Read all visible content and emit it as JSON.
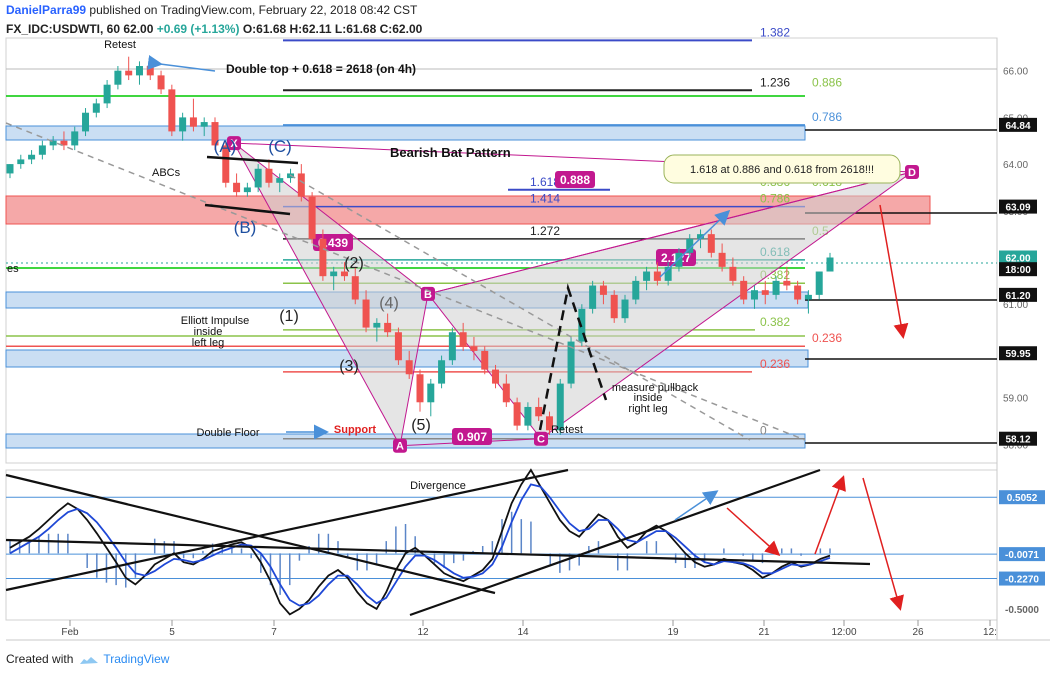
{
  "header": {
    "author": "DanielParra99",
    "published": "published on TradingView.com, February 22, 2018 08:42 CST",
    "symbol": "FX_IDC:USDWTI, 60",
    "last": "62.00",
    "change": "+0.69 (+1.13%)",
    "o": "O:61.68",
    "h": "H:62.11",
    "l": "L:61.68",
    "c": "C:62.00"
  },
  "footer": {
    "created_with": "Created with",
    "brand": "TradingView"
  },
  "colors": {
    "up": "#26a69a",
    "down": "#ef5350",
    "zone_blue": "#4a90d9",
    "zone_red": "#ef5350",
    "pattern": "#c2188f",
    "fib_green": "#00c800",
    "fib_blue": "#3b4bc8"
  },
  "chart_data": {
    "type": "candlestick",
    "x_ticks": [
      "Feb",
      "5",
      "7",
      "12",
      "14",
      "19",
      "21",
      "12:00",
      "26",
      "12:"
    ],
    "y_ticks": [
      "66.00",
      "65.00",
      "64.00",
      "63.00",
      "62.00",
      "61.00",
      "60.00",
      "59.00",
      "58.00"
    ],
    "ylim": [
      57.6,
      66.7
    ],
    "price_labels": [
      {
        "value": 64.84,
        "label": "64.84",
        "style": "dark"
      },
      {
        "value": 63.09,
        "label": "63.09",
        "style": "dark"
      },
      {
        "value": 62.0,
        "label": "62.00",
        "style": "green"
      },
      {
        "value": 61.75,
        "label": "18:00",
        "style": "dark"
      },
      {
        "value": 61.2,
        "label": "61.20",
        "style": "dark"
      },
      {
        "value": 59.95,
        "label": "59.95",
        "style": "dark"
      },
      {
        "value": 58.12,
        "label": "58.12",
        "style": "dark"
      }
    ],
    "candles": [
      [
        63.8,
        64.0,
        63.7,
        64.0
      ],
      [
        64.0,
        64.2,
        63.9,
        64.1
      ],
      [
        64.1,
        64.3,
        64.0,
        64.2
      ],
      [
        64.2,
        64.5,
        64.1,
        64.4
      ],
      [
        64.4,
        64.6,
        64.3,
        64.5
      ],
      [
        64.5,
        64.7,
        64.3,
        64.4
      ],
      [
        64.4,
        64.8,
        64.3,
        64.7
      ],
      [
        64.7,
        65.2,
        64.6,
        65.1
      ],
      [
        65.1,
        65.4,
        65.0,
        65.3
      ],
      [
        65.3,
        65.8,
        65.2,
        65.7
      ],
      [
        65.7,
        66.1,
        65.6,
        66.0
      ],
      [
        66.0,
        66.3,
        65.8,
        65.9
      ],
      [
        65.9,
        66.2,
        65.7,
        66.1
      ],
      [
        66.1,
        66.2,
        65.8,
        65.9
      ],
      [
        65.9,
        66.0,
        65.5,
        65.6
      ],
      [
        65.6,
        65.7,
        64.6,
        64.7
      ],
      [
        64.7,
        65.1,
        64.5,
        65.0
      ],
      [
        65.0,
        65.4,
        64.7,
        64.8
      ],
      [
        64.8,
        65.0,
        64.6,
        64.9
      ],
      [
        64.9,
        65.0,
        64.3,
        64.4
      ],
      [
        64.4,
        64.5,
        63.5,
        63.6
      ],
      [
        63.6,
        63.8,
        63.3,
        63.4
      ],
      [
        63.4,
        63.6,
        63.3,
        63.5
      ],
      [
        63.5,
        64.0,
        63.4,
        63.9
      ],
      [
        63.9,
        64.1,
        63.5,
        63.6
      ],
      [
        63.6,
        63.8,
        63.4,
        63.7
      ],
      [
        63.7,
        63.9,
        63.6,
        63.8
      ],
      [
        63.8,
        64.0,
        63.2,
        63.3
      ],
      [
        63.3,
        63.4,
        62.3,
        62.4
      ],
      [
        62.4,
        62.6,
        61.5,
        61.6
      ],
      [
        61.6,
        61.8,
        61.3,
        61.7
      ],
      [
        61.7,
        61.9,
        61.5,
        61.6
      ],
      [
        61.6,
        61.8,
        61.0,
        61.1
      ],
      [
        61.1,
        61.3,
        60.4,
        60.5
      ],
      [
        60.5,
        60.7,
        60.2,
        60.6
      ],
      [
        60.6,
        60.8,
        60.3,
        60.4
      ],
      [
        60.4,
        60.5,
        59.7,
        59.8
      ],
      [
        59.8,
        60.0,
        59.4,
        59.5
      ],
      [
        59.5,
        59.6,
        58.7,
        58.9
      ],
      [
        58.9,
        59.4,
        58.6,
        59.3
      ],
      [
        59.3,
        59.9,
        59.2,
        59.8
      ],
      [
        59.8,
        60.5,
        59.7,
        60.4
      ],
      [
        60.4,
        60.6,
        60.0,
        60.1
      ],
      [
        60.1,
        60.3,
        59.8,
        60.0
      ],
      [
        60.0,
        60.1,
        59.5,
        59.6
      ],
      [
        59.6,
        59.7,
        59.2,
        59.3
      ],
      [
        59.3,
        59.5,
        58.8,
        58.9
      ],
      [
        58.9,
        59.0,
        58.3,
        58.4
      ],
      [
        58.4,
        58.9,
        58.3,
        58.8
      ],
      [
        58.8,
        59.0,
        58.5,
        58.6
      ],
      [
        58.6,
        58.7,
        58.2,
        58.3
      ],
      [
        58.3,
        59.4,
        58.2,
        59.3
      ],
      [
        59.3,
        60.3,
        59.2,
        60.2
      ],
      [
        60.2,
        61.0,
        60.1,
        60.9
      ],
      [
        60.9,
        61.5,
        60.8,
        61.4
      ],
      [
        61.4,
        61.5,
        61.0,
        61.2
      ],
      [
        61.2,
        61.3,
        60.6,
        60.7
      ],
      [
        60.7,
        61.2,
        60.6,
        61.1
      ],
      [
        61.1,
        61.6,
        61.0,
        61.5
      ],
      [
        61.5,
        61.8,
        61.3,
        61.7
      ],
      [
        61.7,
        61.9,
        61.4,
        61.5
      ],
      [
        61.5,
        61.9,
        61.4,
        61.8
      ],
      [
        61.8,
        62.2,
        61.7,
        62.1
      ],
      [
        62.1,
        62.5,
        62.0,
        62.4
      ],
      [
        62.4,
        62.6,
        62.2,
        62.5
      ],
      [
        62.5,
        62.6,
        62.0,
        62.1
      ],
      [
        62.1,
        62.3,
        61.7,
        61.8
      ],
      [
        61.8,
        62.0,
        61.4,
        61.5
      ],
      [
        61.5,
        61.6,
        61.0,
        61.1
      ],
      [
        61.1,
        61.4,
        60.9,
        61.3
      ],
      [
        61.3,
        61.5,
        61.0,
        61.2
      ],
      [
        61.2,
        61.6,
        61.1,
        61.5
      ],
      [
        61.5,
        61.8,
        61.3,
        61.4
      ],
      [
        61.4,
        61.5,
        61.0,
        61.1
      ],
      [
        61.1,
        61.3,
        60.8,
        61.2
      ],
      [
        61.2,
        61.7,
        61.1,
        61.7
      ],
      [
        61.7,
        62.1,
        61.7,
        62.0
      ]
    ],
    "horizontal_lines": [
      {
        "value": 66.65,
        "label": "1.382",
        "color": "#3b4bc8"
      },
      {
        "value": 65.58,
        "label": "1.236",
        "color": "#222222",
        "label2": "0.886"
      },
      {
        "value": 64.84,
        "label": "0.786",
        "color": "#4a90d9"
      },
      {
        "value": 63.45,
        "label": "1.618",
        "color": "#3b4bc8",
        "label2": "0.886",
        "label3": "0.618"
      },
      {
        "value": 63.09,
        "label": "1.414",
        "color": "#3b4bc8",
        "label2": "0.786"
      },
      {
        "value": 62.4,
        "label": "1.272",
        "color": "#222222",
        "label2": "0.5"
      },
      {
        "value": 61.95,
        "label2": "0.618",
        "color": "#26a69a"
      },
      {
        "value": 61.45,
        "label2": "0.382",
        "color": "#8bc34a"
      },
      {
        "value": 60.45,
        "label2": "0.382",
        "color": "#8bc34a"
      },
      {
        "value": 60.1,
        "label2": "0.236",
        "color": "#ef5350"
      },
      {
        "value": 59.55,
        "label2": "0.236",
        "color": "#ef5350"
      },
      {
        "value": 58.12,
        "label2": "0",
        "color": "#888888"
      }
    ],
    "pattern_points": [
      {
        "label": "X",
        "value": 64.45
      },
      {
        "label": "A",
        "value": 57.97
      },
      {
        "label": "B",
        "value": 61.22
      },
      {
        "label": "C",
        "value": 58.12
      },
      {
        "label": "D",
        "value": 63.83
      }
    ],
    "pattern_ratios": [
      "0.439",
      "0.907",
      "2.127",
      "0.888"
    ],
    "annotations": [
      "Retest",
      "Double top + 0.618 = 2618 (on 4h)",
      "Bearish Bat Pattern",
      "1.618 at 0.886 and 0.618 from 2618!!!",
      "ABCs",
      "(A)",
      "(B)",
      "(C)",
      "(1)",
      "(2)",
      "(3)",
      "(4)",
      "(5)",
      "Elliott Impulse",
      "inside",
      "left leg",
      "measure pullback",
      "inside",
      "right leg",
      "Double Floor",
      "Support",
      "Retest",
      "Divergence",
      "es"
    ],
    "oscillator": {
      "y_ticks": [
        "0.5052",
        "-0.0071",
        "-0.2270",
        "-0.5000"
      ],
      "ylim": [
        -0.6,
        0.75
      ],
      "macd": [
        0.05,
        0.1,
        0.15,
        0.22,
        0.3,
        0.38,
        0.45,
        0.4,
        0.3,
        0.18,
        0.05,
        -0.08,
        -0.22,
        -0.28,
        -0.2,
        -0.1,
        -0.05,
        0.0,
        -0.08,
        -0.1,
        -0.05,
        0.02,
        0.05,
        0.08,
        0.1,
        0.05,
        -0.08,
        -0.25,
        -0.45,
        -0.55,
        -0.5,
        -0.42,
        -0.3,
        -0.2,
        -0.15,
        -0.22,
        -0.35,
        -0.45,
        -0.5,
        -0.35,
        -0.15,
        0.0,
        0.05,
        -0.02,
        -0.1,
        -0.18,
        -0.22,
        -0.25,
        -0.2,
        -0.15,
        -0.05,
        0.2,
        0.45,
        0.62,
        0.75,
        0.6,
        0.45,
        0.3,
        0.2,
        0.15,
        0.25,
        0.35,
        0.3,
        0.15,
        0.05,
        0.1,
        0.2,
        0.25,
        0.2,
        0.1,
        0.0,
        -0.08,
        -0.12,
        -0.1,
        -0.05,
        -0.08,
        -0.1,
        -0.15,
        -0.22,
        -0.18,
        -0.12,
        -0.08,
        -0.12,
        -0.1,
        -0.05,
        -0.02
      ],
      "signal": [
        0.0,
        0.05,
        0.1,
        0.15,
        0.22,
        0.3,
        0.37,
        0.4,
        0.36,
        0.28,
        0.17,
        0.05,
        -0.08,
        -0.18,
        -0.2,
        -0.16,
        -0.1,
        -0.05,
        -0.06,
        -0.08,
        -0.06,
        -0.02,
        0.02,
        0.05,
        0.08,
        0.07,
        0.0,
        -0.12,
        -0.28,
        -0.42,
        -0.47,
        -0.45,
        -0.38,
        -0.28,
        -0.2,
        -0.2,
        -0.28,
        -0.38,
        -0.45,
        -0.4,
        -0.26,
        -0.12,
        -0.02,
        -0.02,
        -0.06,
        -0.12,
        -0.18,
        -0.22,
        -0.21,
        -0.18,
        -0.1,
        0.06,
        0.28,
        0.48,
        0.62,
        0.6,
        0.5,
        0.38,
        0.27,
        0.2,
        0.22,
        0.3,
        0.3,
        0.22,
        0.12,
        0.1,
        0.15,
        0.2,
        0.2,
        0.14,
        0.06,
        -0.02,
        -0.08,
        -0.1,
        -0.07,
        -0.08,
        -0.09,
        -0.12,
        -0.18,
        -0.18,
        -0.14,
        -0.1,
        -0.11,
        -0.1,
        -0.07,
        -0.04
      ]
    }
  }
}
